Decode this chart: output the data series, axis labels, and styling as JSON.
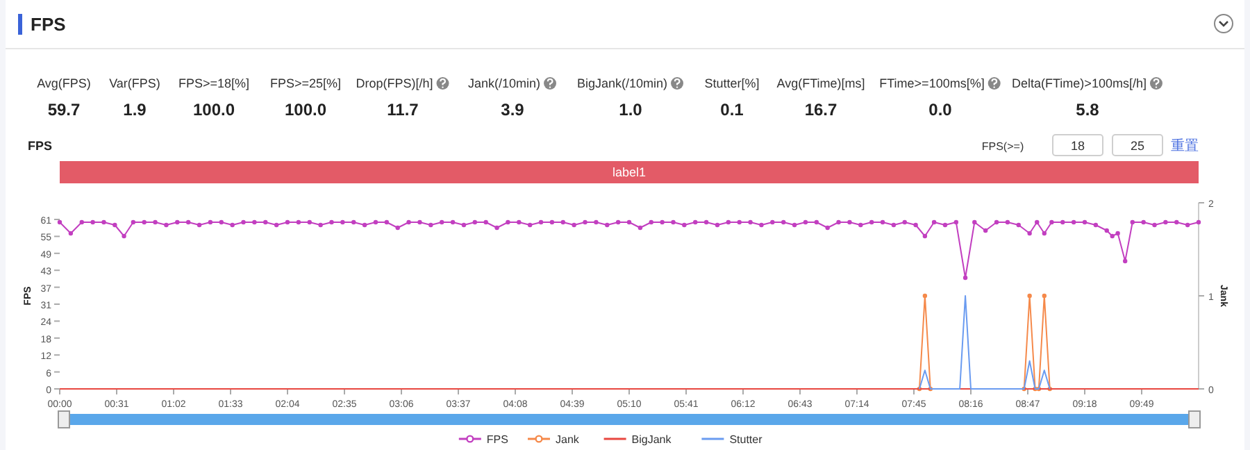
{
  "chart_data": [
    {
      "type": "other",
      "title": "FPS",
      "categories": [
        "Avg(FPS)",
        "Var(FPS)",
        "FPS>=18[%]",
        "FPS>=25[%]",
        "Drop(FPS)[/h]",
        "Jank(/10min)",
        "BigJank(/10min)",
        "Stutter[%]",
        "Avg(FTime)[ms]",
        "FTime>=100ms[%]",
        "Delta(FTime)>100ms[/h]"
      ],
      "value_labels": [
        "59.7",
        "1.9",
        "100.0",
        "100.0",
        "11.7",
        "3.9",
        "1.0",
        "0.1",
        "16.7",
        "0.0",
        "5.8"
      ]
    },
    {
      "type": "line",
      "title": "FPS",
      "ylabel": "FPS",
      "y2label": "Jank",
      "annotations": [
        "FPS(>=)",
        "18",
        "25",
        "重置",
        "label1"
      ],
      "xlim": [
        0,
        620
      ],
      "xticks": [
        {
          "value": 0,
          "label": "00:00"
        },
        {
          "value": 31,
          "label": "00:31"
        },
        {
          "value": 62,
          "label": "01:02"
        },
        {
          "value": 93,
          "label": "01:33"
        },
        {
          "value": 124,
          "label": "02:04"
        },
        {
          "value": 155,
          "label": "02:35"
        },
        {
          "value": 186,
          "label": "03:06"
        },
        {
          "value": 217,
          "label": "03:37"
        },
        {
          "value": 248,
          "label": "04:08"
        },
        {
          "value": 279,
          "label": "04:39"
        },
        {
          "value": 310,
          "label": "05:10"
        },
        {
          "value": 341,
          "label": "05:41"
        },
        {
          "value": 372,
          "label": "06:12"
        },
        {
          "value": 403,
          "label": "06:43"
        },
        {
          "value": 434,
          "label": "07:14"
        },
        {
          "value": 465,
          "label": "07:45"
        },
        {
          "value": 496,
          "label": "08:16"
        },
        {
          "value": 527,
          "label": "08:47"
        },
        {
          "value": 558,
          "label": "09:18"
        },
        {
          "value": 589,
          "label": "09:49"
        }
      ],
      "ylim": [
        0,
        67
      ],
      "yticks": [
        0,
        {
          "value": 6.1,
          "label": "6"
        },
        {
          "value": 12.2,
          "label": "12"
        },
        {
          "value": 18.3,
          "label": "18"
        },
        {
          "value": 24.4,
          "label": "24"
        },
        {
          "value": 30.5,
          "label": "31"
        },
        {
          "value": 36.6,
          "label": "37"
        },
        {
          "value": 42.7,
          "label": "43"
        },
        {
          "value": 48.8,
          "label": "49"
        },
        {
          "value": 54.9,
          "label": "55"
        },
        61
      ],
      "y2lim": [
        0,
        2
      ],
      "y2ticks": [
        0,
        1,
        2
      ],
      "grid": false,
      "legend": "bottom",
      "series": [
        {
          "name": "FPS",
          "color": "#c23fc0",
          "marker": "circle",
          "x": [
            0,
            6,
            12,
            18,
            24,
            30,
            35,
            40,
            46,
            52,
            58,
            64,
            70,
            76,
            82,
            88,
            94,
            100,
            106,
            112,
            118,
            124,
            130,
            136,
            142,
            148,
            154,
            160,
            166,
            172,
            178,
            184,
            190,
            196,
            202,
            208,
            214,
            220,
            226,
            232,
            238,
            244,
            250,
            256,
            262,
            268,
            274,
            280,
            286,
            292,
            298,
            304,
            310,
            316,
            322,
            328,
            334,
            340,
            346,
            352,
            358,
            364,
            370,
            376,
            382,
            388,
            394,
            400,
            406,
            412,
            418,
            424,
            430,
            436,
            442,
            448,
            454,
            460,
            466,
            471,
            476,
            482,
            488,
            493,
            498,
            504,
            510,
            516,
            522,
            528,
            532,
            536,
            540,
            546,
            552,
            558,
            564,
            570,
            573,
            576,
            580,
            584,
            590,
            596,
            602,
            608,
            614,
            620
          ],
          "values": [
            60,
            56,
            60,
            60,
            60,
            59,
            55,
            60,
            60,
            60,
            59,
            60,
            60,
            59,
            60,
            60,
            59,
            60,
            60,
            60,
            59,
            60,
            60,
            60,
            59,
            60,
            60,
            60,
            59,
            60,
            60,
            58,
            60,
            60,
            59,
            60,
            60,
            59,
            60,
            60,
            58,
            60,
            60,
            59,
            60,
            60,
            60,
            59,
            60,
            60,
            59,
            60,
            60,
            58,
            60,
            60,
            60,
            59,
            60,
            60,
            59,
            60,
            60,
            60,
            59,
            60,
            60,
            59,
            60,
            60,
            58,
            60,
            60,
            59,
            60,
            60,
            59,
            60,
            59,
            55,
            60,
            59,
            60,
            40,
            60,
            57,
            60,
            60,
            59,
            56,
            60,
            56,
            60,
            60,
            60,
            60,
            59,
            57,
            55,
            56,
            46,
            60,
            60,
            59,
            60,
            60,
            59,
            60
          ]
        },
        {
          "name": "Jank",
          "color": "#f5894a",
          "axis": "y2",
          "marker": "circle",
          "x": [
            468,
            471,
            474,
            525,
            528,
            531,
            533,
            536,
            539
          ],
          "values": [
            0,
            1,
            0,
            0,
            1,
            0,
            0,
            1,
            0
          ]
        },
        {
          "name": "BigJank",
          "color": "#e8473f",
          "axis": "y2",
          "x": [
            0,
            620
          ],
          "values": [
            0,
            0
          ]
        },
        {
          "name": "Stutter",
          "color": "#6a9bf0",
          "axis": "y2",
          "x": [
            468,
            471,
            474,
            490,
            493,
            496,
            525,
            528,
            531,
            533,
            536,
            539
          ],
          "values": [
            0,
            0.2,
            0,
            0,
            1,
            0,
            0,
            0.3,
            0,
            0,
            0.2,
            0
          ]
        }
      ]
    }
  ]
}
